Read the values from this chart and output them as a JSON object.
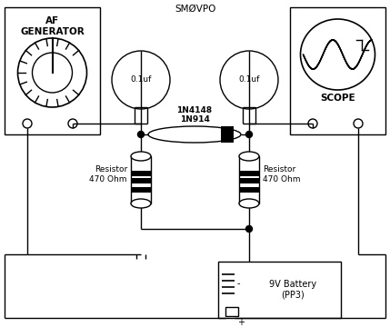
{
  "title": "SMØVPO",
  "bg_color": "#ffffff",
  "fg_color": "#000000",
  "fig_width": 4.29,
  "fig_height": 3.6,
  "dpi": 100,
  "af_gen_label": "AF\nGENERATOR",
  "scope_label": "SCOPE",
  "battery_label": "9V Battery\n(PP3)",
  "cap1_label": "0.1uf",
  "cap2_label": "0.1uf",
  "diode_label": "1N4148\n1N914",
  "res1_label": "Resistor\n470 Ohm",
  "res2_label": "Resistor\n470 Ohm"
}
